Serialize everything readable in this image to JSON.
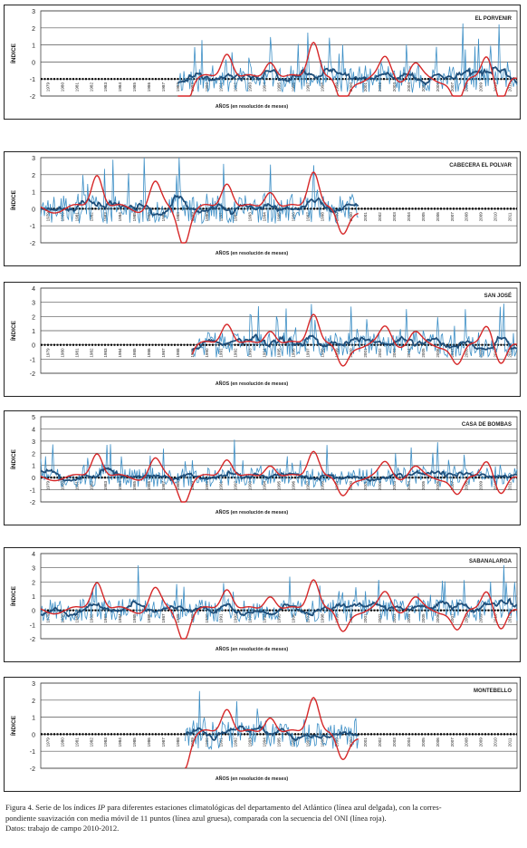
{
  "chart_data": [
    {
      "type": "line",
      "station": "EL PORVENIR",
      "ylabel": "ÍNDICE",
      "xlabel": "AÑOS (en resolución de meses)",
      "ylim": [
        -2,
        3
      ],
      "yticks": [
        "3",
        "2",
        "1",
        "0",
        "-1",
        "-2"
      ],
      "zero_line_at": -1,
      "year_start": 1979,
      "year_end": 2011,
      "x_tick_labels": [
        "1979",
        "1980",
        "1981",
        "1982",
        "1983",
        "1984",
        "1985",
        "1986",
        "1987",
        "1988",
        "1989",
        "1990",
        "1991",
        "1992",
        "1993",
        "1994",
        "1995",
        "1996",
        "1997",
        "1998",
        "1999",
        "2000",
        "2001",
        "2002",
        "2003",
        "2004",
        "2005",
        "2006",
        "2007",
        "2008",
        "2009",
        "2010",
        "2011"
      ],
      "ip_data_years": [
        1988.5,
        2012
      ],
      "series": [
        {
          "role": "ip_thin",
          "color": "#3d8fc6",
          "seed": 11,
          "amp": 1.0
        },
        {
          "role": "smoothed_thick",
          "color": "#1f4e79"
        },
        {
          "role": "oni",
          "color": "#d62728"
        }
      ]
    },
    {
      "type": "line",
      "station": "CABECERA EL POLVAR",
      "ylabel": "ÍNDICE",
      "xlabel": "AÑOS (en resolución de meses)",
      "ylim": [
        -2,
        3
      ],
      "yticks": [
        "3",
        "2",
        "1",
        "0",
        "-1",
        "-2"
      ],
      "zero_line_at": 0,
      "year_start": 1979,
      "year_end": 2011,
      "x_tick_labels": [
        "1979",
        "1980",
        "1981",
        "1982",
        "1983",
        "1984",
        "1985",
        "1986",
        "1987",
        "1988",
        "1989",
        "1990",
        "1991",
        "1992",
        "1993",
        "1994",
        "1995",
        "1996",
        "1997",
        "1998",
        "1999",
        "2000",
        "2001",
        "2002",
        "2003",
        "2004",
        "2005",
        "2006",
        "2007",
        "2008",
        "2009",
        "2010",
        "2011"
      ],
      "ip_data_years": [
        1979,
        2001
      ],
      "series": [
        {
          "role": "ip_thin",
          "color": "#3d8fc6",
          "seed": 23,
          "amp": 1.1
        },
        {
          "role": "smoothed_thick",
          "color": "#1f4e79"
        },
        {
          "role": "oni",
          "color": "#d62728"
        }
      ]
    },
    {
      "type": "line",
      "station": "SAN JOSÉ",
      "ylabel": "ÍNDICE",
      "xlabel": "AÑOS (en resolución de meses)",
      "ylim": [
        -2,
        4
      ],
      "yticks": [
        "4",
        "3",
        "2",
        "1",
        "0",
        "-1",
        "-2"
      ],
      "zero_line_at": 0,
      "year_start": 1979,
      "year_end": 2011,
      "x_tick_labels": [
        "1979",
        "1980",
        "1981",
        "1982",
        "1983",
        "1984",
        "1985",
        "1986",
        "1987",
        "1988",
        "1989",
        "1990",
        "1991",
        "1992",
        "1993",
        "1994",
        "1995",
        "1996",
        "1997",
        "1998",
        "1999",
        "2000",
        "2001",
        "2002",
        "2003",
        "2004",
        "2005",
        "2006",
        "2007",
        "2008",
        "2009",
        "2010",
        "2011"
      ],
      "ip_data_years": [
        1989.5,
        2012
      ],
      "series": [
        {
          "role": "ip_thin",
          "color": "#3d8fc6",
          "seed": 37,
          "amp": 1.1
        },
        {
          "role": "smoothed_thick",
          "color": "#1f4e79"
        },
        {
          "role": "oni",
          "color": "#d62728"
        }
      ]
    },
    {
      "type": "line",
      "station": "CASA DE BOMBAS",
      "ylabel": "ÍNDICE",
      "xlabel": "AÑOS (en resolución de meses)",
      "ylim": [
        -2,
        5
      ],
      "yticks": [
        "5",
        "4",
        "3",
        "2",
        "1",
        "0",
        "-1",
        "-2"
      ],
      "zero_line_at": 0,
      "year_start": 1979,
      "year_end": 2011,
      "x_tick_labels": [
        "1979",
        "1980",
        "1981",
        "1982",
        "1983",
        "1984",
        "1985",
        "1986",
        "1987",
        "1988",
        "1989",
        "1990",
        "1991",
        "1992",
        "1993",
        "1994",
        "1995",
        "1996",
        "1997",
        "1998",
        "1999",
        "2000",
        "2001",
        "2002",
        "2003",
        "2004",
        "2005",
        "2006",
        "2007",
        "2008",
        "2009",
        "2010",
        "2011"
      ],
      "ip_data_years": [
        1979,
        2012
      ],
      "series": [
        {
          "role": "ip_thin",
          "color": "#3d8fc6",
          "seed": 51,
          "amp": 1.0
        },
        {
          "role": "smoothed_thick",
          "color": "#1f4e79"
        },
        {
          "role": "oni",
          "color": "#d62728"
        }
      ]
    },
    {
      "type": "line",
      "station": "SABANALARGA",
      "ylabel": "ÍNDICE",
      "xlabel": "AÑOS (en resolución de meses)",
      "ylim": [
        -2,
        4
      ],
      "yticks": [
        "4",
        "3",
        "2",
        "1",
        "0",
        "-1",
        "-2"
      ],
      "zero_line_at": 0,
      "year_start": 1979,
      "year_end": 2011,
      "x_tick_labels": [
        "1979",
        "1980",
        "1981",
        "1982",
        "1983",
        "1984",
        "1985",
        "1986",
        "1987",
        "1988",
        "1989",
        "1990",
        "1991",
        "1992",
        "1993",
        "1994",
        "1995",
        "1996",
        "1997",
        "1998",
        "1999",
        "2000",
        "2001",
        "2002",
        "2003",
        "2004",
        "2005",
        "2006",
        "2007",
        "2008",
        "2009",
        "2010",
        "2011"
      ],
      "ip_data_years": [
        1979,
        2012
      ],
      "series": [
        {
          "role": "ip_thin",
          "color": "#3d8fc6",
          "seed": 67,
          "amp": 1.0
        },
        {
          "role": "smoothed_thick",
          "color": "#1f4e79"
        },
        {
          "role": "oni",
          "color": "#d62728"
        }
      ]
    },
    {
      "type": "line",
      "station": "MONTEBELLO",
      "ylabel": "ÍNDICE",
      "xlabel": "AÑOS (en resolución de meses)",
      "ylim": [
        -2,
        3
      ],
      "yticks": [
        "3",
        "2",
        "1",
        "0",
        "-1",
        "-2"
      ],
      "zero_line_at": 0,
      "year_start": 1979,
      "year_end": 2011,
      "x_tick_labels": [
        "1979",
        "1980",
        "1981",
        "1982",
        "1983",
        "1984",
        "1985",
        "1986",
        "1987",
        "1988",
        "1989",
        "1990",
        "1991",
        "1992",
        "1993",
        "1994",
        "1995",
        "1996",
        "1997",
        "1998",
        "1999",
        "2000",
        "2001",
        "2002",
        "2003",
        "2004",
        "2005",
        "2006",
        "2007",
        "2008",
        "2009",
        "2010",
        "2011"
      ],
      "ip_data_years": [
        1989,
        2001
      ],
      "series": [
        {
          "role": "ip_thin",
          "color": "#3d8fc6",
          "seed": 83,
          "amp": 1.1
        },
        {
          "role": "smoothed_thick",
          "color": "#1f4e79"
        },
        {
          "role": "oni",
          "color": "#d62728"
        }
      ]
    }
  ],
  "oni_events": [
    [
      1982.9,
      2.2
    ],
    [
      1986.9,
      1.5
    ],
    [
      1988.9,
      -1.9
    ],
    [
      1991.9,
      1.7
    ],
    [
      1994.9,
      1.2
    ],
    [
      1997.9,
      2.4
    ],
    [
      1999.9,
      -1.6
    ],
    [
      2002.9,
      1.2
    ],
    [
      2004.9,
      0.8
    ],
    [
      2007.9,
      -1.5
    ],
    [
      2009.9,
      1.6
    ],
    [
      2010.9,
      -1.5
    ]
  ],
  "caption": {
    "line1_pre": "Figura 4. Serie de los índices ",
    "line1_ip": "IP",
    "line1_post": " para diferentes estaciones climatológicas del departamento del Atlántico (línea azul delgada), con la corres-",
    "line2": "pondiente suavización con media móvil de 11 puntos (línea azul gruesa), comparada con la secuencia del ONI (línea roja).",
    "line3": "Datos: trabajo de campo 2010-2012."
  }
}
